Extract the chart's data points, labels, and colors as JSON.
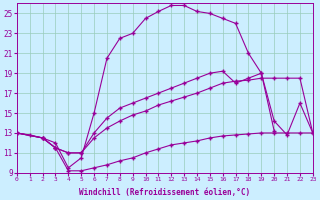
{
  "xlabel": "Windchill (Refroidissement éolien,°C)",
  "bg_color": "#cceeff",
  "line_color": "#990099",
  "grid_color": "#99ccbb",
  "xlim": [
    0,
    23
  ],
  "ylim": [
    9,
    26
  ],
  "xticks": [
    0,
    1,
    2,
    3,
    4,
    5,
    6,
    7,
    8,
    9,
    10,
    11,
    12,
    13,
    14,
    15,
    16,
    17,
    18,
    19,
    20,
    21,
    22,
    23
  ],
  "yticks": [
    9,
    11,
    13,
    15,
    17,
    19,
    21,
    23,
    25
  ],
  "line1_x": [
    0,
    1,
    2,
    3,
    4,
    5,
    6,
    7,
    8,
    9,
    10,
    11,
    12,
    13,
    14,
    15,
    16,
    17,
    18,
    19,
    20
  ],
  "line1_y": [
    13,
    12.8,
    12.5,
    12.0,
    9.5,
    10.5,
    15.0,
    20.5,
    22.5,
    23.0,
    24.5,
    25.2,
    25.8,
    25.8,
    25.2,
    25.0,
    24.5,
    24.0,
    21.0,
    19.0,
    13.2
  ],
  "line2_x": [
    0,
    2,
    3,
    4,
    5,
    6,
    7,
    8,
    9,
    10,
    11,
    12,
    13,
    14,
    15,
    16,
    17,
    18,
    19,
    20,
    21,
    22,
    23
  ],
  "line2_y": [
    13,
    12.5,
    11.5,
    11.0,
    11.0,
    13.0,
    14.5,
    15.5,
    16.0,
    16.5,
    17.0,
    17.5,
    18.0,
    18.5,
    19.0,
    19.2,
    18.0,
    18.5,
    19.0,
    14.2,
    12.8,
    16.0,
    13.0
  ],
  "line3_x": [
    0,
    2,
    3,
    4,
    5,
    6,
    7,
    8,
    9,
    10,
    11,
    12,
    13,
    14,
    15,
    16,
    17,
    18,
    19,
    20,
    21,
    22,
    23
  ],
  "line3_y": [
    13,
    12.5,
    11.5,
    11.0,
    11.0,
    12.5,
    13.5,
    14.2,
    14.8,
    15.2,
    15.8,
    16.2,
    16.6,
    17.0,
    17.5,
    18.0,
    18.2,
    18.3,
    18.5,
    18.5,
    18.5,
    18.5,
    13.0
  ],
  "line4_x": [
    0,
    2,
    3,
    4,
    5,
    6,
    7,
    8,
    9,
    10,
    11,
    12,
    13,
    14,
    15,
    16,
    17,
    18,
    19,
    20,
    21,
    22,
    23
  ],
  "line4_y": [
    13,
    12.5,
    11.5,
    9.2,
    9.2,
    9.5,
    9.8,
    10.2,
    10.5,
    11.0,
    11.4,
    11.8,
    12.0,
    12.2,
    12.5,
    12.7,
    12.8,
    12.9,
    13.0,
    13.0,
    13.0,
    13.0,
    13.0
  ]
}
